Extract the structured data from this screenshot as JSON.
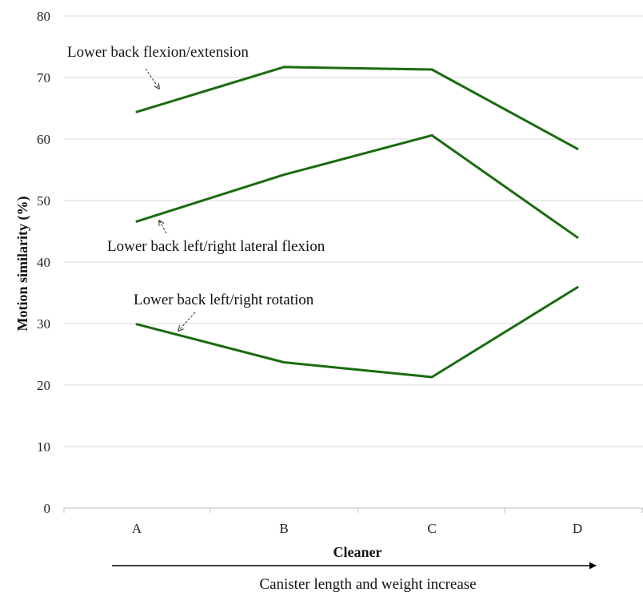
{
  "chart_data": {
    "type": "line",
    "categories": [
      "A",
      "B",
      "C",
      "D"
    ],
    "series": [
      {
        "name": "Lower back flexion/extension",
        "values": [
          64.4,
          71.7,
          71.3,
          58.4
        ]
      },
      {
        "name": "Lower back left/right lateral flexion",
        "values": [
          46.6,
          54.2,
          60.6,
          44.0
        ]
      },
      {
        "name": "Lower back left/right rotation",
        "values": [
          29.9,
          23.7,
          21.3,
          35.9
        ]
      }
    ],
    "title": "",
    "xlabel": "Cleaner",
    "ylabel": "Motion similarity  (%)",
    "ylim": [
      0,
      80
    ],
    "yticks": [
      0,
      10,
      20,
      30,
      40,
      50,
      60,
      70,
      80
    ],
    "grid": true,
    "legend": "none",
    "line_color": "#1a6b10",
    "footer_arrow_label": "Canister length and weight increase"
  }
}
